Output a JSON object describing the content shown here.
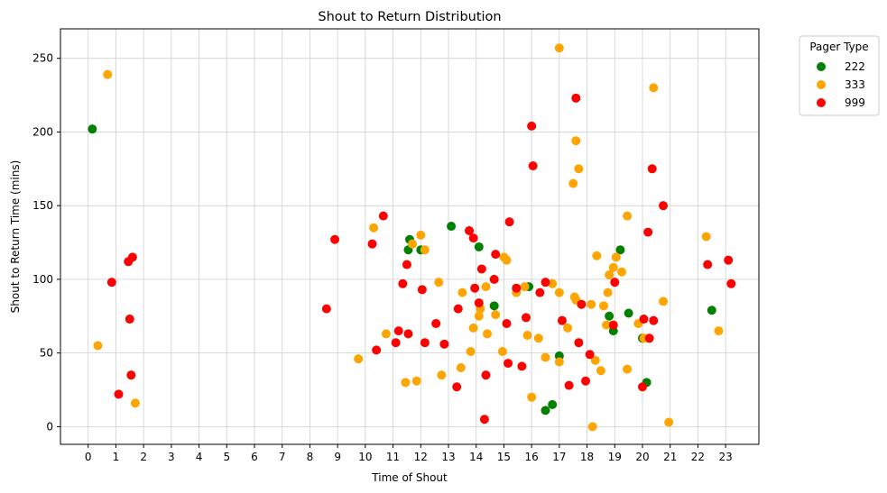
{
  "chart_data": {
    "type": "scatter",
    "title": "Shout to Return Distribution",
    "xlabel": "Time of Shout",
    "ylabel": "Shout to Return Time (mins)",
    "xlim": [
      -1,
      24.2
    ],
    "ylim": [
      -12,
      270
    ],
    "xticks": [
      0,
      1,
      2,
      3,
      4,
      5,
      6,
      7,
      8,
      9,
      10,
      11,
      12,
      13,
      14,
      15,
      16,
      17,
      18,
      19,
      20,
      21,
      22,
      23
    ],
    "yticks": [
      0,
      50,
      100,
      150,
      200,
      250
    ],
    "grid": true,
    "legend": {
      "title": "Pager Type",
      "placement": "outside-top-right"
    },
    "series": [
      {
        "name": "222",
        "color": "#008000",
        "points": [
          [
            0.15,
            202
          ],
          [
            11.55,
            120
          ],
          [
            11.6,
            127
          ],
          [
            12.0,
            120
          ],
          [
            13.1,
            136
          ],
          [
            14.1,
            122
          ],
          [
            14.65,
            82
          ],
          [
            15.9,
            95
          ],
          [
            16.5,
            11
          ],
          [
            16.75,
            15
          ],
          [
            17.0,
            48
          ],
          [
            18.8,
            75
          ],
          [
            18.95,
            65
          ],
          [
            19.2,
            120
          ],
          [
            19.5,
            77
          ],
          [
            20.0,
            60
          ],
          [
            20.15,
            30
          ],
          [
            22.5,
            79
          ]
        ]
      },
      {
        "name": "333",
        "color": "#FFA500",
        "points": [
          [
            0.35,
            55
          ],
          [
            0.7,
            239
          ],
          [
            1.7,
            16
          ],
          [
            9.75,
            46
          ],
          [
            10.3,
            135
          ],
          [
            10.75,
            63
          ],
          [
            11.45,
            30
          ],
          [
            11.7,
            124
          ],
          [
            11.85,
            31
          ],
          [
            12.0,
            130
          ],
          [
            12.15,
            120
          ],
          [
            12.65,
            98
          ],
          [
            12.75,
            35
          ],
          [
            13.45,
            40
          ],
          [
            13.5,
            91
          ],
          [
            13.8,
            51
          ],
          [
            13.9,
            67
          ],
          [
            14.1,
            75
          ],
          [
            14.15,
            80
          ],
          [
            14.35,
            95
          ],
          [
            14.4,
            63
          ],
          [
            14.7,
            76
          ],
          [
            14.95,
            51
          ],
          [
            15.0,
            115
          ],
          [
            15.1,
            113
          ],
          [
            15.45,
            91
          ],
          [
            15.75,
            95
          ],
          [
            15.85,
            62
          ],
          [
            16.0,
            20
          ],
          [
            16.25,
            60
          ],
          [
            16.5,
            47
          ],
          [
            16.75,
            97
          ],
          [
            17.0,
            91
          ],
          [
            17.0,
            44
          ],
          [
            17.0,
            257
          ],
          [
            17.3,
            67
          ],
          [
            17.5,
            165
          ],
          [
            17.55,
            88
          ],
          [
            17.6,
            86
          ],
          [
            17.6,
            194
          ],
          [
            17.7,
            175
          ],
          [
            18.15,
            83
          ],
          [
            18.2,
            0
          ],
          [
            18.3,
            45
          ],
          [
            18.35,
            116
          ],
          [
            18.5,
            38
          ],
          [
            18.6,
            82
          ],
          [
            18.7,
            69
          ],
          [
            18.75,
            91
          ],
          [
            18.8,
            103
          ],
          [
            18.95,
            108
          ],
          [
            19.05,
            115
          ],
          [
            19.25,
            105
          ],
          [
            19.45,
            143
          ],
          [
            19.45,
            39
          ],
          [
            19.85,
            70
          ],
          [
            20.05,
            60
          ],
          [
            20.4,
            230
          ],
          [
            20.75,
            85
          ],
          [
            20.95,
            3
          ],
          [
            22.3,
            129
          ],
          [
            22.75,
            65
          ]
        ]
      },
      {
        "name": "999",
        "color": "#FF0000",
        "points": [
          [
            0.85,
            98
          ],
          [
            1.1,
            22
          ],
          [
            1.45,
            112
          ],
          [
            1.5,
            73
          ],
          [
            1.55,
            35
          ],
          [
            1.6,
            115
          ],
          [
            8.6,
            80
          ],
          [
            8.9,
            127
          ],
          [
            10.25,
            124
          ],
          [
            10.4,
            52
          ],
          [
            10.65,
            143
          ],
          [
            11.1,
            57
          ],
          [
            11.2,
            65
          ],
          [
            11.35,
            97
          ],
          [
            11.5,
            110
          ],
          [
            11.55,
            63
          ],
          [
            12.05,
            93
          ],
          [
            12.15,
            57
          ],
          [
            12.55,
            70
          ],
          [
            12.85,
            56
          ],
          [
            13.3,
            27
          ],
          [
            13.35,
            80
          ],
          [
            13.75,
            133
          ],
          [
            13.9,
            128
          ],
          [
            13.95,
            94
          ],
          [
            14.1,
            84
          ],
          [
            14.2,
            107
          ],
          [
            14.3,
            5
          ],
          [
            14.35,
            35
          ],
          [
            14.65,
            100
          ],
          [
            14.7,
            117
          ],
          [
            15.1,
            70
          ],
          [
            15.15,
            43
          ],
          [
            15.2,
            139
          ],
          [
            15.45,
            94
          ],
          [
            15.65,
            41
          ],
          [
            15.8,
            74
          ],
          [
            16.0,
            204
          ],
          [
            16.05,
            177
          ],
          [
            16.3,
            91
          ],
          [
            16.5,
            98
          ],
          [
            17.1,
            72
          ],
          [
            17.35,
            28
          ],
          [
            17.6,
            223
          ],
          [
            17.7,
            57
          ],
          [
            17.8,
            83
          ],
          [
            17.95,
            31
          ],
          [
            18.1,
            49
          ],
          [
            18.95,
            69
          ],
          [
            19.0,
            98
          ],
          [
            20.0,
            27
          ],
          [
            20.05,
            73
          ],
          [
            20.2,
            132
          ],
          [
            20.25,
            60
          ],
          [
            20.35,
            175
          ],
          [
            20.4,
            72
          ],
          [
            20.75,
            150
          ],
          [
            22.35,
            110
          ],
          [
            23.1,
            113
          ],
          [
            23.2,
            97
          ]
        ]
      }
    ]
  }
}
